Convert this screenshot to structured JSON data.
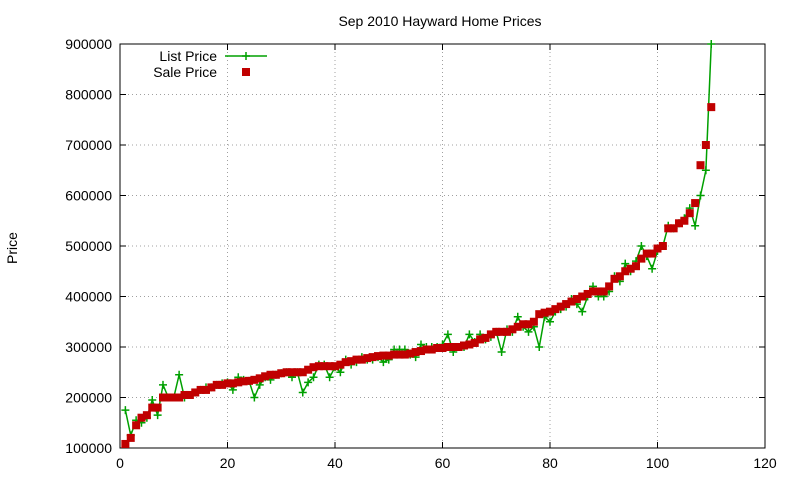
{
  "chart_data": {
    "type": "line",
    "title": "Sep 2010 Hayward Home Prices",
    "ylabel": "Price",
    "xlabel": "",
    "xlim": [
      0,
      120
    ],
    "ylim": [
      100000,
      900000
    ],
    "xticks": [
      0,
      20,
      40,
      60,
      80,
      100,
      120
    ],
    "yticks": [
      100000,
      200000,
      300000,
      400000,
      500000,
      600000,
      700000,
      800000,
      900000
    ],
    "grid": true,
    "legend_position": "top-left",
    "x": [
      1,
      2,
      3,
      4,
      5,
      6,
      7,
      8,
      9,
      10,
      11,
      12,
      13,
      14,
      15,
      16,
      17,
      18,
      19,
      20,
      21,
      22,
      23,
      24,
      25,
      26,
      27,
      28,
      29,
      30,
      31,
      32,
      33,
      34,
      35,
      36,
      37,
      38,
      39,
      40,
      41,
      42,
      43,
      44,
      45,
      46,
      47,
      48,
      49,
      50,
      51,
      52,
      53,
      54,
      55,
      56,
      57,
      58,
      59,
      60,
      61,
      62,
      63,
      64,
      65,
      66,
      67,
      68,
      69,
      70,
      71,
      72,
      73,
      74,
      75,
      76,
      77,
      78,
      79,
      80,
      81,
      82,
      83,
      84,
      85,
      86,
      87,
      88,
      89,
      90,
      91,
      92,
      93,
      94,
      95,
      96,
      97,
      98,
      99,
      100,
      101,
      102,
      103,
      104,
      105,
      106,
      107,
      108,
      109,
      110
    ],
    "series": [
      {
        "name": "List Price",
        "color": "#00a000",
        "marker": "plus",
        "line": true,
        "values": [
          175000,
          125000,
          155000,
          150000,
          160000,
          195000,
          165000,
          225000,
          200000,
          200000,
          245000,
          200000,
          205000,
          210000,
          215000,
          220000,
          220000,
          225000,
          228000,
          230000,
          215000,
          240000,
          235000,
          233000,
          200000,
          225000,
          240000,
          235000,
          245000,
          248000,
          250000,
          240000,
          250000,
          210000,
          230000,
          240000,
          265000,
          265000,
          240000,
          260000,
          250000,
          275000,
          265000,
          270000,
          280000,
          275000,
          275000,
          280000,
          270000,
          275000,
          295000,
          295000,
          295000,
          285000,
          280000,
          305000,
          300000,
          300000,
          300000,
          305000,
          325000,
          290000,
          300000,
          300000,
          325000,
          310000,
          325000,
          315000,
          320000,
          330000,
          290000,
          335000,
          330000,
          360000,
          340000,
          330000,
          340000,
          300000,
          360000,
          350000,
          370000,
          375000,
          380000,
          395000,
          385000,
          370000,
          400000,
          420000,
          400000,
          400000,
          410000,
          440000,
          430000,
          465000,
          450000,
          470000,
          500000,
          480000,
          455000,
          490000,
          500000,
          540000,
          535000,
          545000,
          555000,
          575000,
          540000,
          600000,
          650000,
          900000
        ]
      },
      {
        "name": "Sale Price",
        "color": "#c00000",
        "marker": "square",
        "line": false,
        "values": [
          108000,
          120000,
          145000,
          160000,
          165000,
          180000,
          180000,
          200000,
          200000,
          200000,
          200000,
          205000,
          205000,
          210000,
          215000,
          215000,
          220000,
          225000,
          225000,
          228000,
          228000,
          230000,
          232000,
          233000,
          235000,
          238000,
          242000,
          245000,
          245000,
          248000,
          250000,
          250000,
          250000,
          250000,
          255000,
          260000,
          262000,
          262000,
          262000,
          262000,
          265000,
          270000,
          272000,
          275000,
          275000,
          278000,
          280000,
          282000,
          283000,
          283000,
          285000,
          285000,
          285000,
          287000,
          290000,
          292000,
          295000,
          295000,
          298000,
          298000,
          300000,
          300000,
          300000,
          303000,
          305000,
          308000,
          315000,
          318000,
          325000,
          330000,
          330000,
          330000,
          335000,
          340000,
          345000,
          345000,
          350000,
          365000,
          368000,
          370000,
          375000,
          380000,
          385000,
          390000,
          395000,
          400000,
          405000,
          410000,
          410000,
          410000,
          420000,
          435000,
          440000,
          450000,
          455000,
          460000,
          475000,
          485000,
          485000,
          495000,
          500000,
          535000,
          535000,
          545000,
          550000,
          565000,
          585000,
          660000,
          700000,
          775000
        ]
      }
    ]
  }
}
